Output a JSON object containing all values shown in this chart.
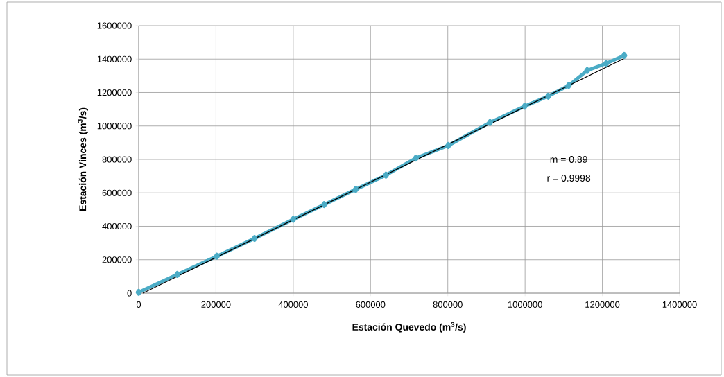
{
  "chart_data": {
    "type": "line",
    "xlabel": "Estación Quevedo (m$^{3}$/s)",
    "ylabel": "Estación Vinces (m$^{3}$/s)",
    "xlim": [
      0,
      1400000
    ],
    "ylim": [
      0,
      1600000
    ],
    "xticks": [
      0,
      200000,
      400000,
      600000,
      800000,
      1000000,
      1200000,
      1400000
    ],
    "yticks": [
      0,
      200000,
      400000,
      600000,
      800000,
      1000000,
      1200000,
      1400000,
      1600000
    ],
    "grid": true,
    "series": [
      {
        "color": "#4bacc6",
        "marker": "diamond",
        "x": [
          0,
          100000,
          202300,
          300000,
          400000,
          480000,
          561700,
          640000,
          717500,
          801400,
          909300,
          999100,
          1060000,
          1112900,
          1160800,
          1210000,
          1256600
        ],
        "values": [
          5000,
          112000,
          221000,
          327000,
          441000,
          530000,
          621000,
          706000,
          808000,
          883000,
          1021000,
          1118000,
          1178000,
          1242000,
          1332000,
          1374000,
          1422000
        ]
      },
      {
        "color": "#000000",
        "marker": "none",
        "x": [
          10800,
          1256600
        ],
        "values": [
          0,
          1404000
        ]
      }
    ],
    "annotations": [
      "m = 0.89",
      "r = 0.9998"
    ]
  }
}
